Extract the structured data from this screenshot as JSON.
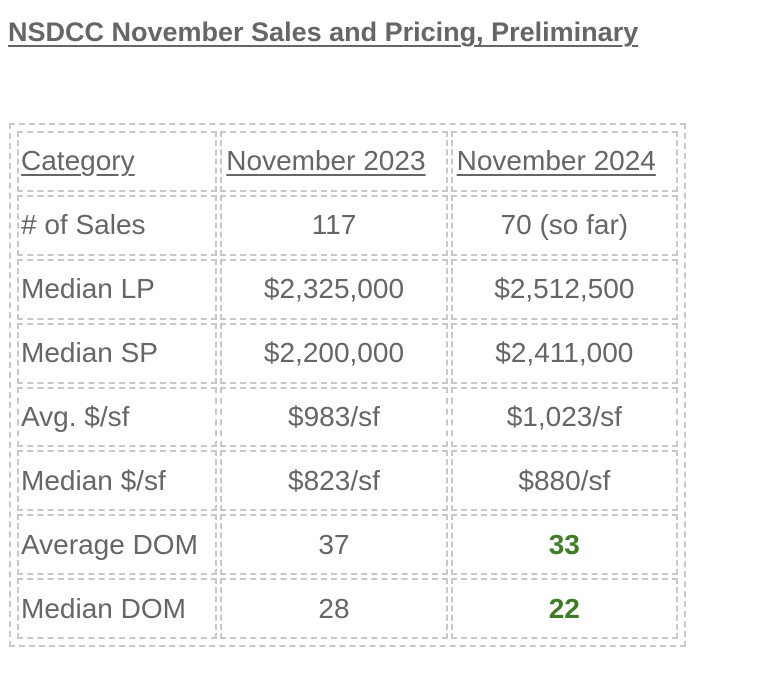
{
  "title": "NSDCC November Sales and Pricing, Preliminary",
  "table": {
    "headers": [
      "Category",
      "November 2023",
      "November 2024"
    ],
    "rows": [
      {
        "category": "# of Sales",
        "nov2023": "117",
        "nov2024": "70 (so far)"
      },
      {
        "category": "Median LP",
        "nov2023": "$2,325,000",
        "nov2024": "$2,512,500"
      },
      {
        "category": "Median SP",
        "nov2023": "$2,200,000",
        "nov2024": "$2,411,000"
      },
      {
        "category": "Avg. $/sf",
        "nov2023": "$983/sf",
        "nov2024": "$1,023/sf"
      },
      {
        "category": "Median $/sf",
        "nov2023": "$823/sf",
        "nov2024": "$880/sf"
      },
      {
        "category": "Average DOM",
        "nov2023": "37",
        "nov2024": "33"
      },
      {
        "category": "Median DOM",
        "nov2023": "28",
        "nov2024": "22"
      }
    ]
  },
  "colors": {
    "text": "#666666",
    "highlight": "#3e7d26",
    "border": "#c8c8c8"
  }
}
